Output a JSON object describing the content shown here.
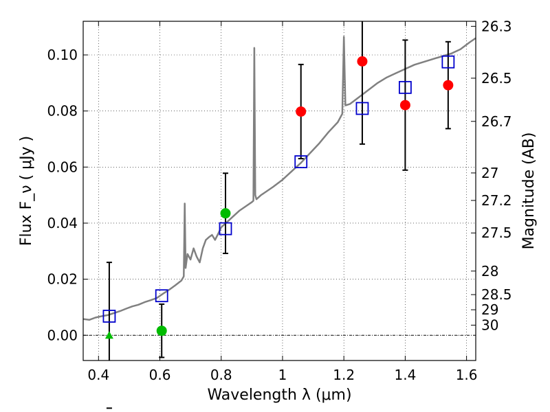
{
  "chart_data": {
    "type": "scatter",
    "xlabel": "Wavelength  λ (μm)",
    "ylabel_left": "Flux  F_ν  ( μJy )",
    "ylabel_right": "Magnitude (AB)",
    "xlim": [
      0.35,
      1.63
    ],
    "ylim": [
      -0.009,
      0.112
    ],
    "x_ticks": [
      0.4,
      0.6,
      0.8,
      1.0,
      1.2,
      1.4,
      1.6
    ],
    "x_tick_labels": [
      "0.4",
      "0.6",
      "0.8",
      "1",
      "1.2",
      "1.4",
      "1.6"
    ],
    "y_ticks": [
      0.0,
      0.02,
      0.04,
      0.06,
      0.08,
      0.1
    ],
    "y_tick_labels": [
      "0.00",
      "0.02",
      "0.04",
      "0.06",
      "0.08",
      "0.10"
    ],
    "right_ticks": [
      {
        "label": "26.3",
        "flux": 0.1102
      },
      {
        "label": "26.5",
        "flux": 0.0917
      },
      {
        "label": "26.7",
        "flux": 0.0763
      },
      {
        "label": "27",
        "flux": 0.0579
      },
      {
        "label": "27.2",
        "flux": 0.0481
      },
      {
        "label": "27.5",
        "flux": 0.0365
      },
      {
        "label": "28",
        "flux": 0.0229
      },
      {
        "label": "28.5",
        "flux": 0.0145
      },
      {
        "label": "29",
        "flux": 0.0091
      },
      {
        "label": "30",
        "flux": 0.0036
      }
    ],
    "grid": true,
    "colors": {
      "model": "#808080",
      "square": "#0000cc",
      "detection": "#ff0000",
      "limit": "#00bb00",
      "errorbar": "#000000"
    },
    "model_spectrum": [
      [
        0.35,
        0.0058
      ],
      [
        0.37,
        0.0055
      ],
      [
        0.39,
        0.0063
      ],
      [
        0.41,
        0.0068
      ],
      [
        0.43,
        0.0072
      ],
      [
        0.45,
        0.0079
      ],
      [
        0.47,
        0.0086
      ],
      [
        0.49,
        0.0095
      ],
      [
        0.51,
        0.0103
      ],
      [
        0.53,
        0.0109
      ],
      [
        0.55,
        0.0118
      ],
      [
        0.57,
        0.0125
      ],
      [
        0.59,
        0.0133
      ],
      [
        0.61,
        0.0148
      ],
      [
        0.63,
        0.0162
      ],
      [
        0.65,
        0.0178
      ],
      [
        0.67,
        0.0195
      ],
      [
        0.678,
        0.021
      ],
      [
        0.681,
        0.047
      ],
      [
        0.684,
        0.024
      ],
      [
        0.69,
        0.029
      ],
      [
        0.7,
        0.027
      ],
      [
        0.71,
        0.031
      ],
      [
        0.72,
        0.028
      ],
      [
        0.73,
        0.026
      ],
      [
        0.74,
        0.031
      ],
      [
        0.75,
        0.034
      ],
      [
        0.76,
        0.035
      ],
      [
        0.77,
        0.0358
      ],
      [
        0.78,
        0.034
      ],
      [
        0.79,
        0.0362
      ],
      [
        0.8,
        0.0385
      ],
      [
        0.82,
        0.0405
      ],
      [
        0.84,
        0.0425
      ],
      [
        0.86,
        0.0445
      ],
      [
        0.88,
        0.046
      ],
      [
        0.9,
        0.0475
      ],
      [
        0.905,
        0.048
      ],
      [
        0.908,
        0.1025
      ],
      [
        0.911,
        0.05
      ],
      [
        0.915,
        0.0485
      ],
      [
        0.93,
        0.05
      ],
      [
        0.95,
        0.0515
      ],
      [
        0.97,
        0.053
      ],
      [
        1.0,
        0.0555
      ],
      [
        1.03,
        0.0585
      ],
      [
        1.06,
        0.0615
      ],
      [
        1.09,
        0.065
      ],
      [
        1.12,
        0.0685
      ],
      [
        1.15,
        0.0725
      ],
      [
        1.18,
        0.076
      ],
      [
        1.195,
        0.079
      ],
      [
        1.2,
        0.1065
      ],
      [
        1.205,
        0.082
      ],
      [
        1.22,
        0.0825
      ],
      [
        1.25,
        0.085
      ],
      [
        1.28,
        0.0875
      ],
      [
        1.31,
        0.09
      ],
      [
        1.34,
        0.092
      ],
      [
        1.37,
        0.0935
      ],
      [
        1.4,
        0.095
      ],
      [
        1.43,
        0.0965
      ],
      [
        1.46,
        0.0975
      ],
      [
        1.49,
        0.0985
      ],
      [
        1.52,
        0.0995
      ],
      [
        1.55,
        0.1005
      ],
      [
        1.58,
        0.102
      ],
      [
        1.61,
        0.1045
      ],
      [
        1.63,
        0.106
      ]
    ],
    "model_photometry": [
      {
        "x": 0.435,
        "y": 0.0068
      },
      {
        "x": 0.606,
        "y": 0.0141
      },
      {
        "x": 0.814,
        "y": 0.038
      },
      {
        "x": 1.06,
        "y": 0.0619
      },
      {
        "x": 1.26,
        "y": 0.0809
      },
      {
        "x": 1.4,
        "y": 0.0884
      },
      {
        "x": 1.54,
        "y": 0.0975
      }
    ],
    "observed": [
      {
        "x": 0.435,
        "y": 0.0,
        "err": 0.026,
        "kind": "limit"
      },
      {
        "x": 0.606,
        "y": 0.0016,
        "err": 0.0095,
        "kind": "limit"
      },
      {
        "x": 0.814,
        "y": 0.0435,
        "err": 0.0143,
        "kind": "limit"
      },
      {
        "x": 1.06,
        "y": 0.0798,
        "err": 0.0168,
        "kind": "detection"
      },
      {
        "x": 1.26,
        "y": 0.0977,
        "err": 0.0295,
        "kind": "detection"
      },
      {
        "x": 1.4,
        "y": 0.0821,
        "err": 0.0232,
        "kind": "detection"
      },
      {
        "x": 1.54,
        "y": 0.0892,
        "err": 0.0155,
        "kind": "detection"
      }
    ]
  }
}
